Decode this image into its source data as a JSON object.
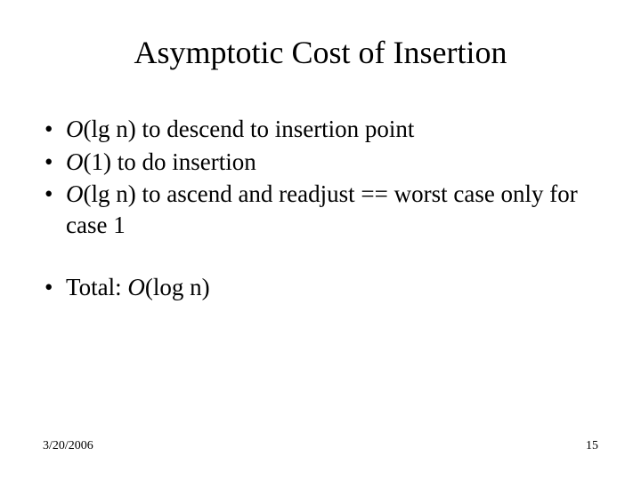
{
  "slide": {
    "title": "Asymptotic Cost of Insertion",
    "title_fontsize": 36,
    "bullets": [
      {
        "big_o": "O",
        "args": "(lg n)",
        "rest": " to descend to insertion point"
      },
      {
        "big_o": "O",
        "args": "(1)",
        "rest": " to do insertion"
      },
      {
        "big_o": "O",
        "args": "(lg n)",
        "rest": " to ascend and readjust == worst case only for case 1"
      }
    ],
    "bullet_fontsize": 27,
    "total": {
      "prefix": "Total: ",
      "big_o": "O",
      "args": "(log n)"
    },
    "footer": {
      "date": "3/20/2006",
      "page": "15",
      "fontsize": 14
    },
    "colors": {
      "background": "#ffffff",
      "text": "#000000"
    }
  }
}
